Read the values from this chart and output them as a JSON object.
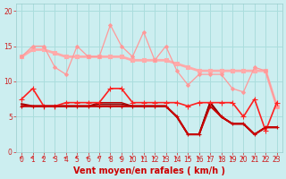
{
  "bg_color": "#cceef0",
  "grid_color": "#aadddd",
  "xlim": [
    -0.5,
    23.5
  ],
  "ylim": [
    0,
    21
  ],
  "yticks": [
    0,
    5,
    10,
    15,
    20
  ],
  "xticks": [
    0,
    1,
    2,
    3,
    4,
    5,
    6,
    7,
    8,
    9,
    10,
    11,
    12,
    13,
    14,
    15,
    16,
    17,
    18,
    19,
    20,
    21,
    22,
    23
  ],
  "xlabel": "Vent moyen/en rafales ( km/h )",
  "xlabel_color": "#cc0000",
  "xlabel_fontsize": 7,
  "tick_fontsize": 5.5,
  "tick_color": "#cc2020",
  "lines": [
    {
      "x": [
        0,
        1,
        2,
        3,
        4,
        5,
        6,
        7,
        8,
        9,
        10,
        11,
        12,
        13,
        14,
        15,
        16,
        17,
        18,
        19,
        20,
        21,
        22,
        23
      ],
      "y": [
        13.5,
        14.5,
        14.5,
        14.0,
        13.5,
        13.5,
        13.5,
        13.5,
        13.5,
        13.5,
        13.0,
        13.0,
        13.0,
        13.0,
        12.5,
        12.0,
        11.5,
        11.5,
        11.5,
        11.5,
        11.5,
        11.5,
        11.5,
        6.5
      ],
      "color": "#ffaaaa",
      "lw": 2.0,
      "marker": "s",
      "ms": 2.5,
      "zorder": 2
    },
    {
      "x": [
        0,
        1,
        2,
        3,
        4,
        5,
        6,
        7,
        8,
        9,
        10,
        11,
        12,
        13,
        14,
        15,
        16,
        17,
        18,
        19,
        20,
        21,
        22,
        23
      ],
      "y": [
        13.5,
        15.0,
        15.0,
        12.0,
        11.0,
        15.0,
        13.5,
        13.5,
        18.0,
        15.0,
        13.5,
        17.0,
        13.0,
        15.0,
        11.5,
        9.5,
        11.0,
        11.0,
        11.0,
        9.0,
        8.5,
        12.0,
        11.5,
        6.5
      ],
      "color": "#ff9999",
      "lw": 0.9,
      "marker": "D",
      "ms": 2.0,
      "zorder": 3
    },
    {
      "x": [
        0,
        1,
        2,
        3,
        4,
        5,
        6,
        7,
        8,
        9,
        10,
        11,
        12,
        13,
        14,
        15,
        16,
        17,
        18,
        19,
        20,
        21,
        22,
        23
      ],
      "y": [
        7.5,
        9.0,
        6.5,
        6.5,
        7.0,
        7.0,
        7.0,
        7.0,
        9.0,
        9.0,
        7.0,
        7.0,
        7.0,
        7.0,
        7.0,
        6.5,
        7.0,
        7.0,
        7.0,
        7.0,
        5.0,
        7.5,
        3.0,
        7.0
      ],
      "color": "#ff2020",
      "lw": 1.2,
      "marker": "+",
      "ms": 4.0,
      "zorder": 5
    },
    {
      "x": [
        0,
        1,
        2,
        3,
        4,
        5,
        6,
        7,
        8,
        9,
        10,
        11,
        12,
        13,
        14,
        15,
        16,
        17,
        18,
        19,
        20,
        21,
        22,
        23
      ],
      "y": [
        6.5,
        6.5,
        6.5,
        6.5,
        6.5,
        6.5,
        6.5,
        6.5,
        6.5,
        6.5,
        6.5,
        6.5,
        6.5,
        6.5,
        5.0,
        2.5,
        2.5,
        6.5,
        5.0,
        4.0,
        4.0,
        2.5,
        3.5,
        3.5
      ],
      "color": "#cc0000",
      "lw": 1.3,
      "marker": "+",
      "ms": 3.5,
      "zorder": 5
    },
    {
      "x": [
        0,
        1,
        2,
        3,
        4,
        5,
        6,
        7,
        8,
        9,
        10,
        11,
        12,
        13,
        14,
        15,
        16,
        17,
        18,
        19,
        20,
        21,
        22,
        23
      ],
      "y": [
        6.8,
        6.5,
        6.5,
        6.5,
        6.5,
        6.5,
        6.5,
        6.5,
        6.5,
        6.5,
        6.5,
        6.5,
        6.5,
        6.5,
        5.0,
        2.5,
        2.5,
        7.0,
        5.0,
        4.0,
        4.0,
        2.5,
        3.5,
        3.5
      ],
      "color": "#aa0000",
      "lw": 1.5,
      "marker": null,
      "ms": 0,
      "zorder": 4
    },
    {
      "x": [
        0,
        1,
        2,
        3,
        4,
        5,
        6,
        7,
        8,
        9,
        10,
        11,
        12,
        13,
        14,
        15,
        16,
        17,
        18,
        19,
        20,
        21,
        22,
        23
      ],
      "y": [
        6.5,
        6.5,
        6.5,
        6.5,
        6.5,
        6.5,
        6.5,
        6.8,
        6.8,
        6.8,
        6.5,
        6.5,
        6.5,
        6.5,
        5.0,
        2.5,
        2.5,
        7.0,
        5.0,
        4.0,
        4.0,
        2.5,
        3.5,
        3.5
      ],
      "color": "#880000",
      "lw": 1.0,
      "marker": null,
      "ms": 0,
      "zorder": 4
    },
    {
      "x": [
        0,
        1,
        2,
        3,
        4,
        5,
        6,
        7,
        8,
        9,
        10,
        11,
        12,
        13,
        14,
        15,
        16,
        17,
        18,
        19,
        20,
        21,
        22,
        23
      ],
      "y": [
        6.5,
        6.5,
        6.5,
        6.5,
        6.5,
        6.5,
        6.5,
        7.0,
        7.0,
        7.0,
        6.5,
        6.5,
        6.5,
        6.5,
        5.0,
        2.5,
        2.5,
        7.0,
        5.0,
        4.0,
        4.0,
        2.5,
        3.5,
        3.5
      ],
      "color": "#bb0000",
      "lw": 1.0,
      "marker": null,
      "ms": 0,
      "zorder": 3
    }
  ],
  "arrow_color": "#dd2222",
  "arrows_x": [
    0,
    1,
    2,
    3,
    4,
    5,
    6,
    7,
    8,
    9,
    10,
    11,
    12,
    13,
    14,
    15,
    16,
    17,
    18,
    19,
    20,
    21,
    22,
    23
  ],
  "arrow_right_indices": [
    15
  ]
}
